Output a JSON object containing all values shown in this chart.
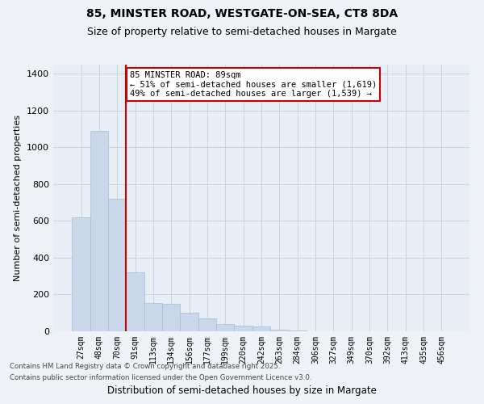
{
  "title1": "85, MINSTER ROAD, WESTGATE-ON-SEA, CT8 8DA",
  "title2": "Size of property relative to semi-detached houses in Margate",
  "xlabel": "Distribution of semi-detached houses by size in Margate",
  "ylabel": "Number of semi-detached properties",
  "bar_color": "#c8d8ea",
  "bar_edge_color": "#aabccc",
  "grid_color": "#c8d4dc",
  "property_line_color": "#cc0000",
  "annotation_text": "85 MINSTER ROAD: 89sqm\n← 51% of semi-detached houses are smaller (1,619)\n49% of semi-detached houses are larger (1,539) →",
  "footnote1": "Contains HM Land Registry data © Crown copyright and database right 2025.",
  "footnote2": "Contains public sector information licensed under the Open Government Licence v3.0.",
  "bin_labels": [
    "27sqm",
    "48sqm",
    "70sqm",
    "91sqm",
    "113sqm",
    "134sqm",
    "156sqm",
    "177sqm",
    "199sqm",
    "220sqm",
    "242sqm",
    "263sqm",
    "284sqm",
    "306sqm",
    "327sqm",
    "349sqm",
    "370sqm",
    "392sqm",
    "413sqm",
    "435sqm",
    "456sqm"
  ],
  "counts": [
    620,
    1090,
    720,
    320,
    155,
    150,
    100,
    70,
    40,
    30,
    25,
    10,
    5,
    0,
    0,
    0,
    0,
    0,
    0,
    0,
    0
  ],
  "property_line_x": 2.5,
  "ylim": [
    0,
    1450
  ],
  "yticks": [
    0,
    200,
    400,
    600,
    800,
    1000,
    1200,
    1400
  ],
  "background_color": "#eef2f6",
  "plot_bg_color": "#e8eef5"
}
